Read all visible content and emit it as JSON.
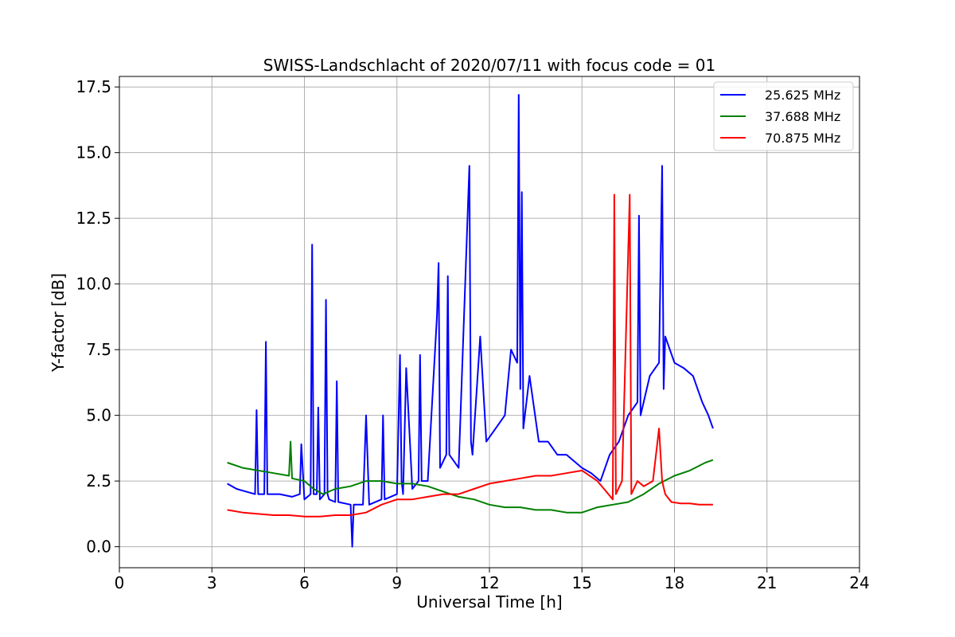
{
  "chart_data": {
    "type": "line",
    "title": "SWISS-Landschlacht of 2020/07/11 with focus code = 01",
    "xlabel": "Universal Time [h]",
    "ylabel": "Y-factor [dB]",
    "xlim": [
      0,
      24
    ],
    "ylim": [
      -0.8,
      17.9
    ],
    "xticks": [
      0,
      3,
      6,
      9,
      12,
      15,
      18,
      21,
      24
    ],
    "xtick_labels": [
      "0",
      "3",
      "6",
      "9",
      "12",
      "15",
      "18",
      "21",
      "24"
    ],
    "yticks": [
      0.0,
      2.5,
      5.0,
      7.5,
      10.0,
      12.5,
      15.0,
      17.5
    ],
    "ytick_labels": [
      "0.0",
      "2.5",
      "5.0",
      "7.5",
      "10.0",
      "12.5",
      "15.0",
      "17.5"
    ],
    "grid": true,
    "legend_position": "top-right",
    "series": [
      {
        "name": "25.625 MHz",
        "color": "#0000ff",
        "x": [
          3.5,
          3.8,
          4.1,
          4.4,
          4.45,
          4.5,
          4.7,
          4.75,
          4.8,
          5.2,
          5.6,
          5.85,
          5.9,
          6.0,
          6.2,
          6.25,
          6.3,
          6.4,
          6.45,
          6.5,
          6.65,
          6.7,
          6.75,
          6.8,
          7.0,
          7.05,
          7.1,
          7.5,
          7.55,
          7.6,
          7.9,
          8.0,
          8.1,
          8.5,
          8.55,
          8.6,
          9.0,
          9.1,
          9.15,
          9.2,
          9.3,
          9.5,
          9.7,
          9.75,
          9.8,
          10.0,
          10.3,
          10.35,
          10.4,
          10.6,
          10.65,
          10.7,
          11.0,
          11.35,
          11.4,
          11.45,
          11.7,
          11.9,
          12.2,
          12.5,
          12.7,
          12.9,
          12.95,
          13.0,
          13.05,
          13.1,
          13.3,
          13.6,
          13.9,
          14.2,
          14.5,
          14.8,
          15.0,
          15.3,
          15.6,
          15.9,
          16.2,
          16.5,
          16.8,
          16.85,
          16.9,
          17.2,
          17.5,
          17.6,
          17.65,
          17.7,
          18.0,
          18.3,
          18.6,
          18.9,
          19.1,
          19.25
        ],
        "y": [
          2.4,
          2.2,
          2.1,
          2.0,
          5.2,
          2.0,
          2.0,
          7.8,
          2.0,
          2.0,
          1.9,
          2.0,
          3.9,
          1.8,
          2.0,
          11.5,
          2.0,
          2.0,
          5.3,
          1.8,
          2.0,
          9.4,
          2.0,
          1.8,
          1.7,
          6.3,
          1.7,
          1.6,
          0.0,
          1.6,
          1.6,
          5.0,
          1.6,
          1.8,
          5.0,
          1.8,
          2.0,
          7.3,
          2.5,
          2.0,
          6.8,
          2.2,
          2.5,
          7.3,
          2.5,
          2.5,
          8.8,
          10.8,
          3.0,
          3.5,
          10.3,
          3.5,
          3.0,
          14.5,
          4.0,
          3.5,
          8.0,
          4.0,
          4.5,
          5.0,
          7.5,
          7.0,
          17.2,
          6.0,
          13.5,
          4.5,
          6.5,
          4.0,
          4.0,
          3.5,
          3.5,
          3.2,
          3.0,
          2.8,
          2.5,
          3.5,
          4.0,
          5.0,
          5.5,
          12.6,
          5.0,
          6.5,
          7.0,
          14.5,
          6.0,
          8.0,
          7.0,
          6.8,
          6.5,
          5.5,
          5.0,
          4.5
        ]
      },
      {
        "name": "37.688 MHz",
        "color": "#008000",
        "x": [
          3.5,
          4.0,
          4.5,
          5.0,
          5.5,
          5.55,
          5.6,
          6.0,
          6.3,
          6.6,
          7.0,
          7.5,
          8.0,
          8.5,
          9.0,
          9.5,
          10.0,
          10.5,
          11.0,
          11.5,
          12.0,
          12.5,
          13.0,
          13.5,
          14.0,
          14.5,
          15.0,
          15.5,
          16.0,
          16.5,
          17.0,
          17.5,
          18.0,
          18.5,
          19.0,
          19.25
        ],
        "y": [
          3.2,
          3.0,
          2.9,
          2.8,
          2.7,
          4.0,
          2.6,
          2.5,
          2.2,
          2.0,
          2.2,
          2.3,
          2.5,
          2.5,
          2.4,
          2.4,
          2.3,
          2.1,
          1.9,
          1.8,
          1.6,
          1.5,
          1.5,
          1.4,
          1.4,
          1.3,
          1.3,
          1.5,
          1.6,
          1.7,
          2.0,
          2.4,
          2.7,
          2.9,
          3.2,
          3.3
        ]
      },
      {
        "name": "70.875 MHz",
        "color": "#ff0000",
        "x": [
          3.5,
          4.0,
          4.5,
          5.0,
          5.5,
          6.0,
          6.5,
          7.0,
          7.5,
          8.0,
          8.5,
          9.0,
          9.5,
          10.0,
          10.5,
          11.0,
          11.5,
          12.0,
          12.5,
          13.0,
          13.5,
          14.0,
          14.5,
          15.0,
          15.5,
          16.0,
          16.05,
          16.1,
          16.3,
          16.55,
          16.6,
          16.8,
          17.0,
          17.3,
          17.5,
          17.6,
          17.7,
          17.9,
          18.2,
          18.5,
          18.8,
          19.25
        ],
        "y": [
          1.4,
          1.3,
          1.25,
          1.2,
          1.2,
          1.15,
          1.15,
          1.2,
          1.2,
          1.3,
          1.6,
          1.8,
          1.8,
          1.9,
          2.0,
          2.0,
          2.2,
          2.4,
          2.5,
          2.6,
          2.7,
          2.7,
          2.8,
          2.9,
          2.5,
          1.8,
          13.4,
          2.0,
          2.5,
          13.4,
          2.0,
          2.5,
          2.3,
          2.5,
          4.5,
          2.5,
          2.0,
          1.7,
          1.65,
          1.65,
          1.6,
          1.6
        ]
      }
    ]
  }
}
